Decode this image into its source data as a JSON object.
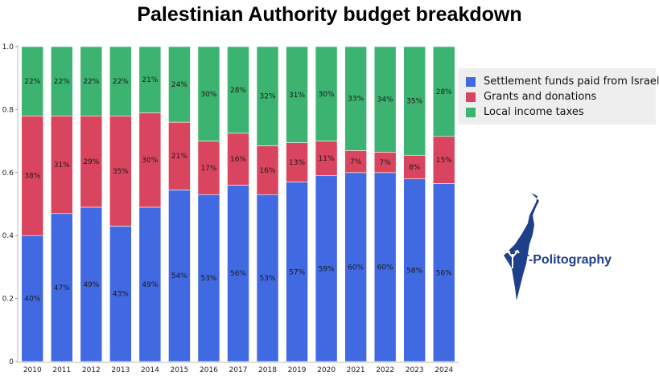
{
  "chart_data": {
    "type": "bar",
    "stacked": true,
    "title": "Palestinian Authority budget breakdown",
    "xlabel": "",
    "ylabel": "",
    "categories": [
      "2010",
      "2011",
      "2012",
      "2013",
      "2014",
      "2015",
      "2016",
      "2017",
      "2018",
      "2019",
      "2020",
      "2021",
      "2022",
      "2023",
      "2024"
    ],
    "ylim": [
      0,
      1.0
    ],
    "yticks": [
      "0",
      "0.2",
      "0.4",
      "0.6",
      "0.8",
      "1.0"
    ],
    "series": [
      {
        "name": "Settlement funds paid from Israel",
        "color": "#4169e1",
        "values": [
          0.4,
          0.47,
          0.49,
          0.43,
          0.49,
          0.545,
          0.53,
          0.56,
          0.53,
          0.57,
          0.59,
          0.6,
          0.6,
          0.58,
          0.565
        ],
        "labels": [
          "40%",
          "47%",
          "49%",
          "43%",
          "49%",
          "54%",
          "53%",
          "56%",
          "53%",
          "57%",
          "59%",
          "60%",
          "60%",
          "58%",
          "56%"
        ]
      },
      {
        "name": "Grants and donations",
        "color": "#d9455f",
        "values": [
          0.38,
          0.31,
          0.29,
          0.35,
          0.3,
          0.215,
          0.17,
          0.165,
          0.155,
          0.125,
          0.11,
          0.07,
          0.065,
          0.075,
          0.15
        ],
        "labels": [
          "38%",
          "31%",
          "29%",
          "35%",
          "30%",
          "21%",
          "17%",
          "16%",
          "16%",
          "13%",
          "11%",
          "7%",
          "7%",
          "8%",
          "15%"
        ]
      },
      {
        "name": "Local income taxes",
        "color": "#3cb371",
        "values": [
          0.22,
          0.22,
          0.22,
          0.22,
          0.21,
          0.24,
          0.3,
          0.275,
          0.315,
          0.305,
          0.3,
          0.33,
          0.335,
          0.345,
          0.285
        ],
        "labels": [
          "22%",
          "22%",
          "22%",
          "22%",
          "21%",
          "24%",
          "30%",
          "28%",
          "32%",
          "31%",
          "30%",
          "33%",
          "34%",
          "35%",
          "28%"
        ]
      }
    ],
    "legend": "right",
    "grid": false
  },
  "watermark": {
    "text": "T-Politography",
    "color": "#1e3f8a"
  }
}
